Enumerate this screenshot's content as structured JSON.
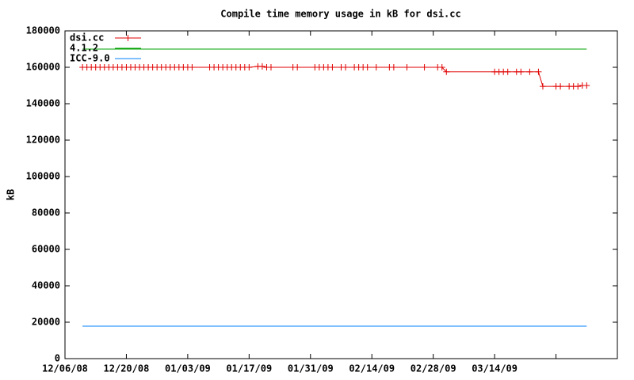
{
  "chart_data": {
    "type": "line",
    "title": "Compile time memory usage in kB for dsi.cc",
    "ylabel": "kB",
    "xlim": [
      "2008-12-06",
      "2009-04-11"
    ],
    "xticks": [
      {
        "value": "2008-12-06",
        "label": "12/06/08"
      },
      {
        "value": "2008-12-20",
        "label": "12/20/08"
      },
      {
        "value": "2009-01-03",
        "label": "01/03/09"
      },
      {
        "value": "2009-01-17",
        "label": "01/17/09"
      },
      {
        "value": "2009-01-31",
        "label": "01/31/09"
      },
      {
        "value": "2009-02-14",
        "label": "02/14/09"
      },
      {
        "value": "2009-02-28",
        "label": "02/28/09"
      },
      {
        "value": "2009-03-14",
        "label": "03/14/09"
      },
      {
        "value": "2009-03-28",
        "label": null
      }
    ],
    "ylim": [
      0,
      180000
    ],
    "yticks": [
      0,
      20000,
      40000,
      60000,
      80000,
      100000,
      120000,
      140000,
      160000,
      180000
    ],
    "grid": false,
    "legend": "top-left",
    "series": [
      {
        "name": "dsi.cc",
        "color": "#e00000",
        "markers": true,
        "x": [
          "2008-12-10",
          "2008-12-11",
          "2008-12-12",
          "2008-12-13",
          "2008-12-14",
          "2008-12-15",
          "2008-12-16",
          "2008-12-17",
          "2008-12-18",
          "2008-12-19",
          "2008-12-20",
          "2008-12-21",
          "2008-12-22",
          "2008-12-23",
          "2008-12-24",
          "2008-12-25",
          "2008-12-26",
          "2008-12-27",
          "2008-12-28",
          "2008-12-29",
          "2008-12-30",
          "2008-12-31",
          "2009-01-01",
          "2009-01-02",
          "2009-01-03",
          "2009-01-04",
          "2009-01-08",
          "2009-01-09",
          "2009-01-10",
          "2009-01-11",
          "2009-01-12",
          "2009-01-13",
          "2009-01-14",
          "2009-01-15",
          "2009-01-16",
          "2009-01-17",
          "2009-01-19",
          "2009-01-20",
          "2009-01-21",
          "2009-01-22",
          "2009-01-27",
          "2009-01-28",
          "2009-02-01",
          "2009-02-02",
          "2009-02-03",
          "2009-02-04",
          "2009-02-05",
          "2009-02-07",
          "2009-02-08",
          "2009-02-10",
          "2009-02-11",
          "2009-02-12",
          "2009-02-13",
          "2009-02-15",
          "2009-02-18",
          "2009-02-19",
          "2009-02-22",
          "2009-02-26",
          "2009-03-01",
          "2009-03-02",
          "2009-03-03",
          "2009-03-14",
          "2009-03-15",
          "2009-03-16",
          "2009-03-17",
          "2009-03-19",
          "2009-03-20",
          "2009-03-22",
          "2009-03-24",
          "2009-03-25",
          "2009-03-28",
          "2009-03-29",
          "2009-03-31",
          "2009-04-01",
          "2009-04-02",
          "2009-04-03",
          "2009-04-04"
        ],
        "values": [
          160000,
          160000,
          160000,
          160000,
          160000,
          160000,
          160000,
          160000,
          160000,
          160000,
          160000,
          160000,
          160000,
          160000,
          160000,
          160000,
          160000,
          160000,
          160000,
          160000,
          160000,
          160000,
          160000,
          160000,
          160000,
          160000,
          160000,
          160000,
          160000,
          160000,
          160000,
          160000,
          160000,
          160000,
          160000,
          160000,
          160500,
          160500,
          160000,
          160000,
          160000,
          160000,
          160000,
          160000,
          160000,
          160000,
          160000,
          160000,
          160000,
          160000,
          160000,
          160000,
          160000,
          160000,
          160000,
          160000,
          160000,
          160000,
          160000,
          160000,
          157500,
          157500,
          157500,
          157500,
          157500,
          157500,
          157500,
          157500,
          157500,
          149500,
          149500,
          149500,
          149500,
          149500,
          149500,
          150000,
          150000
        ]
      },
      {
        "name": "4.1.2",
        "color": "#00a000",
        "markers": false,
        "x": [
          "2008-12-10",
          "2009-04-04"
        ],
        "values": [
          170000,
          170000
        ]
      },
      {
        "name": "ICC-9.0",
        "color": "#0080ff",
        "markers": false,
        "x": [
          "2008-12-10",
          "2009-04-04"
        ],
        "values": [
          17800,
          17800
        ]
      }
    ]
  }
}
